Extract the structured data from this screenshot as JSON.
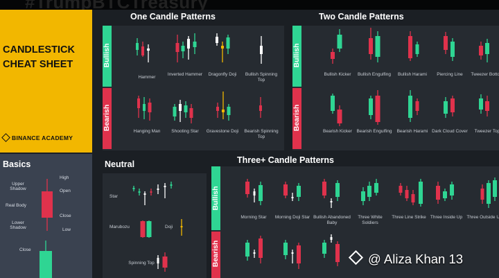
{
  "header_text": "#TrumpBTCTreasury",
  "cheat_title_line1": "CANDLESTICK",
  "cheat_title_line2": "CHEAT SHEET",
  "brand": "BINANCE ACADEMY",
  "basics": {
    "title": "Basics",
    "labels": {
      "high": "High",
      "open": "Open",
      "upper_shadow": "Upper Shadow",
      "real_body": "Real Body",
      "close_top": "Close",
      "lower_shadow": "Lower Shadow",
      "low": "Low",
      "close_bottom": "Close"
    }
  },
  "sections": {
    "one": "One Candle Patterns",
    "two": "Two Candle Patterns",
    "neutral": "Neutral",
    "three": "Three+ Candle Patterns"
  },
  "side_labels": {
    "bullish": "Bullish",
    "bearish": "Bearish"
  },
  "one_bull": [
    "Hammer",
    "Inverted Hammer",
    "Dragonfly Doji",
    "Bullish Spinning Top"
  ],
  "one_bear": [
    "Hanging Man",
    "Shooting Star",
    "Gravestone Doji",
    "Bearish Spinning Top"
  ],
  "two_bull": [
    "Bullish Kicker",
    "Bullish Engulfing",
    "Bullish Harami",
    "Piercing Line",
    "Tweezer Bottom"
  ],
  "two_bear": [
    "Bearish Kicker",
    "Bearish Engulfing",
    "Bearish Harami",
    "Dark Cloud Cover",
    "Tweezer Top"
  ],
  "neutral": [
    "Star",
    "Marubozu",
    "Doji",
    "Spinning Top"
  ],
  "three_bull": [
    "Morning Star",
    "Morning Doji Star",
    "Bullish Abandoned Baby",
    "Three White Soldiers",
    "Three Line Strike",
    "Three Inside Up",
    "Three Outside Up"
  ],
  "watermark": "@ Aliza Khan 13",
  "colors": {
    "green": "#2fd593",
    "red": "#e0324c",
    "yellow": "#f2b700",
    "panel": "#262b31",
    "background": "#1b1f24",
    "basics": "#3a4250"
  }
}
